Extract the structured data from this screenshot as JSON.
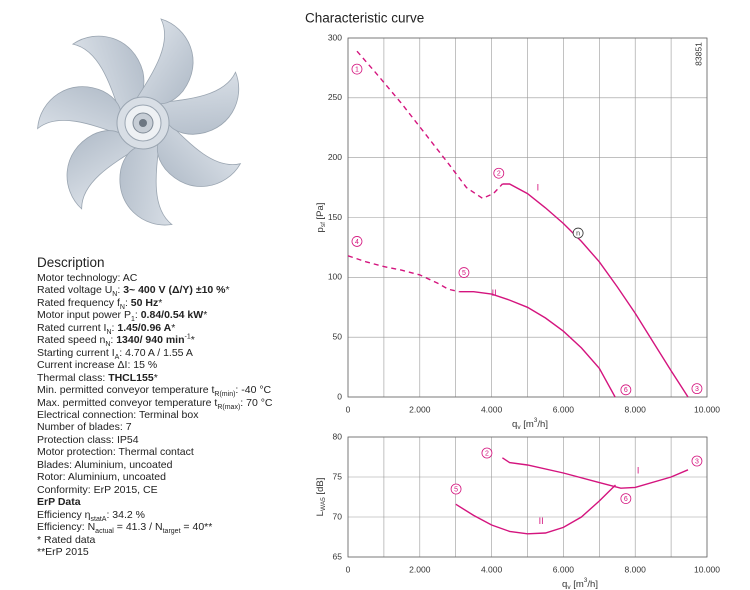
{
  "description": {
    "title": "Description",
    "lines": [
      [
        {
          "t": "Motor technology: AC"
        }
      ],
      [
        {
          "t": "Rated voltage U"
        },
        {
          "sub": "N"
        },
        {
          "t": ": "
        },
        {
          "b": "3~ 400 V (Δ/Y) ±10 %"
        },
        {
          "t": "*"
        }
      ],
      [
        {
          "t": "Rated frequency f"
        },
        {
          "sub": "N"
        },
        {
          "t": ": "
        },
        {
          "b": "50 Hz"
        },
        {
          "t": "*"
        }
      ],
      [
        {
          "t": "Motor input power P"
        },
        {
          "sub": "1"
        },
        {
          "t": ": "
        },
        {
          "b": "0.84/0.54 kW"
        },
        {
          "t": "*"
        }
      ],
      [
        {
          "t": "Rated current I"
        },
        {
          "sub": "N"
        },
        {
          "t": ": "
        },
        {
          "b": "1.45/0.96 A"
        },
        {
          "t": "*"
        }
      ],
      [
        {
          "t": "Rated speed n"
        },
        {
          "sub": "N"
        },
        {
          "t": ": "
        },
        {
          "b": "1340/ 940 min"
        },
        {
          "sup": "-1"
        },
        {
          "t": "*"
        }
      ],
      [
        {
          "t": "Starting current I"
        },
        {
          "sub": "A"
        },
        {
          "t": ": 4.70 A / 1.55 A"
        }
      ],
      [
        {
          "t": "Current increase ΔI: 15 %"
        }
      ],
      [
        {
          "t": "Thermal class: "
        },
        {
          "b": "THCL155"
        },
        {
          "t": "*"
        }
      ],
      [
        {
          "t": "Min. permitted conveyor temperature t"
        },
        {
          "sub": "R(min)"
        },
        {
          "t": ": -40 °C"
        }
      ],
      [
        {
          "t": "Max. permitted conveyor temperature t"
        },
        {
          "sub": "R(max)"
        },
        {
          "t": ": 70 °C"
        }
      ],
      [
        {
          "t": "Electrical connection: Terminal box"
        }
      ],
      [
        {
          "t": "Number of blades: 7"
        }
      ],
      [
        {
          "t": "Protection class: IP54"
        }
      ],
      [
        {
          "t": "Motor protection: Thermal contact"
        }
      ],
      [
        {
          "t": "Blades: Aluminium, uncoated"
        }
      ],
      [
        {
          "t": "Rotor: Aluminium, uncoated"
        }
      ],
      [
        {
          "t": "Conformity: ErP 2015, CE"
        }
      ],
      [
        {
          "b": "ErP Data"
        }
      ],
      [
        {
          "t": "Efficiency η"
        },
        {
          "sub": "statA"
        },
        {
          "t": ": 34.2 %"
        }
      ],
      [
        {
          "t": "Efficiency: N"
        },
        {
          "sub": "actual"
        },
        {
          "t": " = 41.3 / N"
        },
        {
          "sub": "target"
        },
        {
          "t": " = 40**"
        }
      ],
      [
        {
          "t": "* Rated data"
        }
      ],
      [
        {
          "t": "**ErP 2015"
        }
      ]
    ]
  },
  "chart_data": [
    {
      "type": "line",
      "title": "Characteristic curve",
      "code": "83851",
      "xlabel": [
        {
          "t": "q"
        },
        {
          "sub": "v"
        },
        {
          "t": " [m"
        },
        {
          "sup": "3"
        },
        {
          "t": "/h]"
        }
      ],
      "ylabel": [
        {
          "t": "p"
        },
        {
          "sub": "sf"
        },
        {
          "t": " [Pa]"
        }
      ],
      "xlim": [
        0,
        10000
      ],
      "xticks": [
        0,
        {
          "value": 2000,
          "label": "2.000"
        },
        {
          "value": 4000,
          "label": "4.000"
        },
        {
          "value": 6000,
          "label": "6.000"
        },
        {
          "value": 8000,
          "label": "8.000"
        },
        {
          "value": 10000,
          "label": "10.000"
        }
      ],
      "minor_xticks": [
        1000,
        3000,
        5000,
        7000,
        9000
      ],
      "ylim": [
        0,
        300
      ],
      "yticks": [
        0,
        50,
        100,
        150,
        200,
        250,
        300
      ],
      "grid": true,
      "series": [
        {
          "color": "#d4147e",
          "dashed": true,
          "x": [
            250,
            800,
            1500,
            2200,
            2800,
            3300,
            3750,
            4050,
            4300
          ],
          "values": [
            289,
            270,
            245,
            218,
            195,
            175,
            166,
            170,
            178
          ]
        },
        {
          "color": "#d4147e",
          "dashed": false,
          "x": [
            4300,
            4500,
            5000,
            5500,
            6000,
            6500,
            7000,
            7500,
            8000,
            8500,
            9000,
            9470
          ],
          "values": [
            178,
            178,
            170,
            158,
            145,
            130,
            113,
            92,
            70,
            46,
            22,
            0
          ]
        },
        {
          "color": "#d4147e",
          "dashed": true,
          "x": [
            0,
            500,
            1000,
            1500,
            2000,
            2500,
            2800,
            3100
          ],
          "values": [
            118,
            113,
            109,
            106,
            102,
            95,
            90,
            88
          ]
        },
        {
          "color": "#d4147e",
          "dashed": false,
          "x": [
            3100,
            3500,
            4000,
            4500,
            5000,
            5500,
            6000,
            6500,
            7000,
            7440
          ],
          "values": [
            88,
            88,
            86,
            81,
            75,
            66,
            55,
            41,
            24,
            0
          ]
        }
      ],
      "annotations": [
        {
          "text": "1",
          "x": 250,
          "y": 274,
          "circle": true,
          "color": "#d4147e"
        },
        {
          "text": "2",
          "x": 4200,
          "y": 187,
          "circle": true,
          "color": "#d4147e"
        },
        {
          "text": "3",
          "x": 9720,
          "y": 7,
          "circle": true,
          "color": "#d4147e"
        },
        {
          "text": "4",
          "x": 250,
          "y": 130,
          "circle": true,
          "color": "#d4147e"
        },
        {
          "text": "5",
          "x": 3230,
          "y": 104,
          "circle": true,
          "color": "#d4147e"
        },
        {
          "text": "6",
          "x": 7740,
          "y": 6,
          "circle": true,
          "color": "#d4147e"
        },
        {
          "text": "n",
          "x": 6410,
          "y": 137,
          "circle": true,
          "color": "#333333"
        },
        {
          "text": "I",
          "x": 5290,
          "y": 175,
          "circle": false,
          "color": "#d4147e"
        },
        {
          "text": "II",
          "x": 4070,
          "y": 87,
          "circle": false,
          "color": "#d4147e"
        }
      ]
    },
    {
      "type": "line",
      "xlabel": [
        {
          "t": "q"
        },
        {
          "sub": "v"
        },
        {
          "t": " [m"
        },
        {
          "sup": "3"
        },
        {
          "t": "/h]"
        }
      ],
      "ylabel": [
        {
          "t": "L"
        },
        {
          "sub": "WA5"
        },
        {
          "t": " [dB]"
        }
      ],
      "xlim": [
        0,
        10000
      ],
      "xticks": [
        0,
        {
          "value": 2000,
          "label": "2.000"
        },
        {
          "value": 4000,
          "label": "4.000"
        },
        {
          "value": 6000,
          "label": "6.000"
        },
        {
          "value": 8000,
          "label": "8.000"
        },
        {
          "value": 10000,
          "label": "10.000"
        }
      ],
      "minor_xticks": [
        1000,
        3000,
        5000,
        7000,
        9000
      ],
      "ylim": [
        65,
        80
      ],
      "yticks": [
        65,
        70,
        75,
        80
      ],
      "grid": true,
      "series": [
        {
          "color": "#d4147e",
          "dashed": false,
          "x": [
            4300,
            4500,
            5000,
            6000,
            7000,
            7600,
            8000,
            9000,
            9470
          ],
          "values": [
            77.4,
            76.8,
            76.5,
            75.5,
            74.3,
            73.6,
            73.7,
            75.0,
            75.9
          ]
        },
        {
          "color": "#d4147e",
          "dashed": false,
          "x": [
            3000,
            3500,
            4000,
            4500,
            5000,
            5500,
            6000,
            6500,
            7000,
            7450
          ],
          "values": [
            71.6,
            70.2,
            69.0,
            68.2,
            67.9,
            68.0,
            68.7,
            70.0,
            72.0,
            74.0
          ]
        }
      ],
      "annotations": [
        {
          "text": "2",
          "x": 3870,
          "y": 78,
          "circle": true,
          "color": "#d4147e"
        },
        {
          "text": "3",
          "x": 9720,
          "y": 77,
          "circle": true,
          "color": "#d4147e"
        },
        {
          "text": "5",
          "x": 3010,
          "y": 73.5,
          "circle": true,
          "color": "#d4147e"
        },
        {
          "text": "6",
          "x": 7740,
          "y": 72.3,
          "circle": true,
          "color": "#d4147e"
        },
        {
          "text": "I",
          "x": 8080,
          "y": 75.8,
          "circle": false,
          "color": "#d4147e"
        },
        {
          "text": "II",
          "x": 5380,
          "y": 69.5,
          "circle": false,
          "color": "#d4147e"
        }
      ]
    }
  ]
}
